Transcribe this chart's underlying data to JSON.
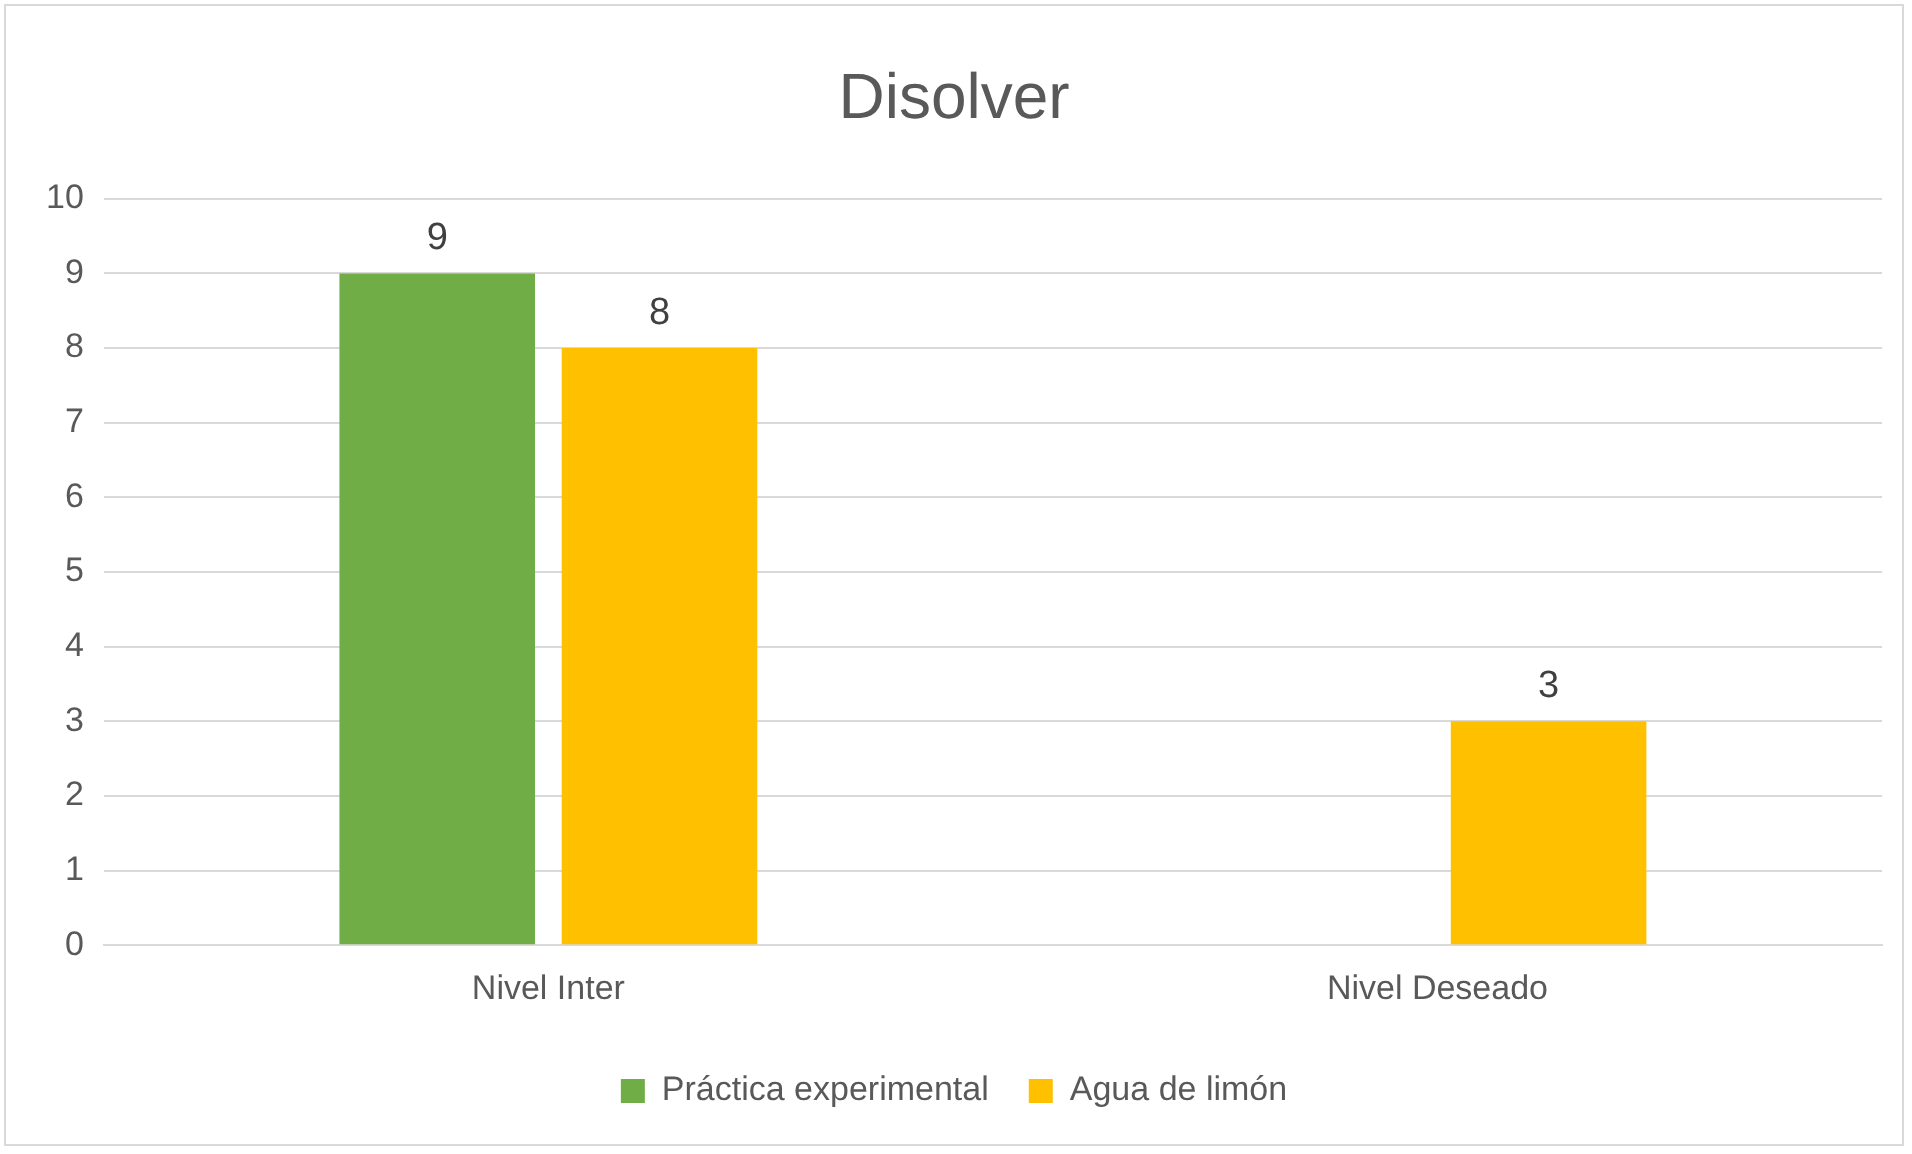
{
  "chart_data": {
    "type": "bar",
    "title": "Disolver",
    "categories": [
      "Nivel Inter",
      "Nivel Deseado"
    ],
    "series": [
      {
        "name": "Práctica experimental",
        "color": "#70ad47",
        "values": [
          9,
          null
        ]
      },
      {
        "name": "Agua de limón",
        "color": "#ffc000",
        "values": [
          8,
          3
        ]
      }
    ],
    "ylim": [
      0,
      10
    ],
    "yticks": [
      0,
      1,
      2,
      3,
      4,
      5,
      6,
      7,
      8,
      9,
      10
    ],
    "grid": "y",
    "legend": "bottom",
    "data_labels": true
  }
}
